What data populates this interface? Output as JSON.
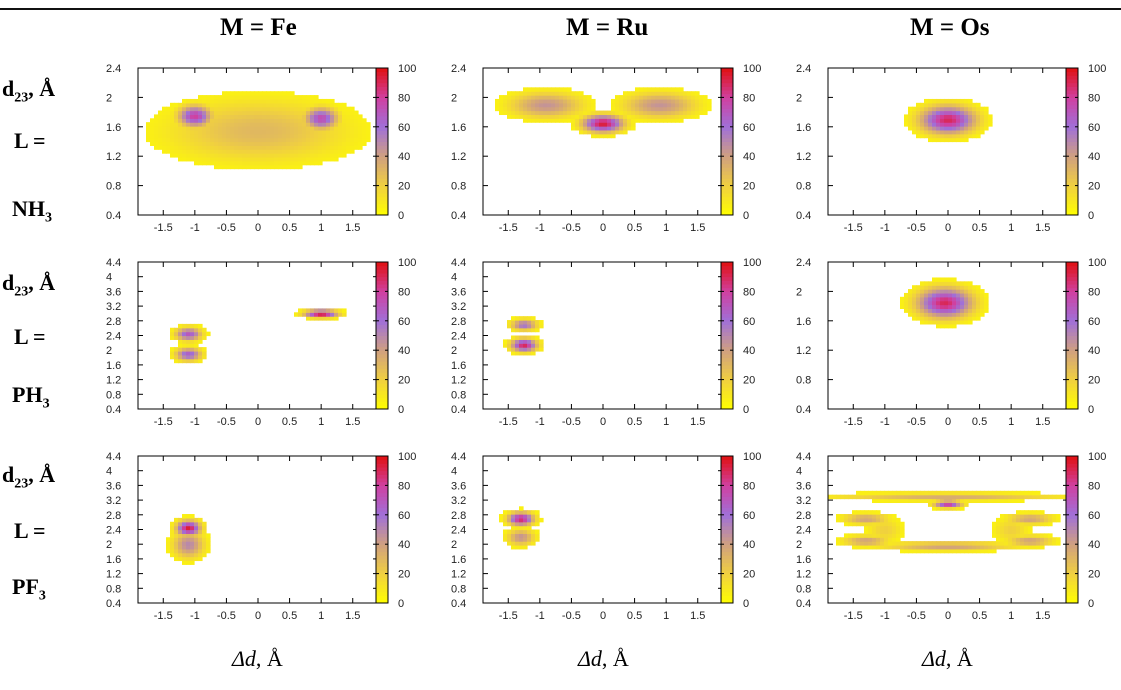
{
  "column_titles": [
    "M = Fe",
    "M = Ru",
    "M = Os"
  ],
  "row_labels": [
    {
      "axis": "d",
      "axis_sub": "23",
      "unit": ", Å",
      "ligand_prefix": "L =",
      "ligand": "NH",
      "ligand_sub": "3"
    },
    {
      "axis": "d",
      "axis_sub": "23",
      "unit": ", Å",
      "ligand_prefix": "L =",
      "ligand": "PH",
      "ligand_sub": "3"
    },
    {
      "axis": "d",
      "axis_sub": "23",
      "unit": ", Å",
      "ligand_prefix": "L =",
      "ligand": "PF",
      "ligand_sub": "3"
    }
  ],
  "xlabel": {
    "symbol": "Δd",
    "unit": ", Å"
  },
  "colorscale": {
    "ticks": [
      "0",
      "20",
      "40",
      "60",
      "80",
      "100"
    ],
    "colors": [
      "#ffff00",
      "#f0d040",
      "#d0a080",
      "#a070d8",
      "#d040a0",
      "#e01010"
    ]
  },
  "chart_data": [
    {
      "type": "heatmap",
      "panel": "Fe-NH3",
      "xlim": [
        -1.9,
        1.9
      ],
      "ylim": [
        0.4,
        2.4
      ],
      "xticks": [
        "-1.5",
        "-1",
        "-0.5",
        "0",
        "0.5",
        "1",
        "1.5"
      ],
      "yticks": [
        "0.4",
        "0.8",
        "1.2",
        "1.6",
        "2",
        "2.4"
      ],
      "blobs": [
        {
          "x": -1.0,
          "y": 1.75,
          "sx": 0.18,
          "sy": 0.1,
          "peak": 80
        },
        {
          "x": 1.0,
          "y": 1.72,
          "sx": 0.18,
          "sy": 0.1,
          "peak": 75
        },
        {
          "x": 0.0,
          "y": 1.55,
          "sx": 1.0,
          "sy": 0.3,
          "peak": 30
        }
      ]
    },
    {
      "type": "heatmap",
      "panel": "Ru-NH3",
      "xlim": [
        -1.9,
        1.9
      ],
      "ylim": [
        0.4,
        2.4
      ],
      "xticks": [
        "-1.5",
        "-1",
        "-0.5",
        "0",
        "0.5",
        "1",
        "1.5"
      ],
      "yticks": [
        "0.4",
        "0.8",
        "1.2",
        "1.6",
        "2",
        "2.4"
      ],
      "blobs": [
        {
          "x": 0.0,
          "y": 1.65,
          "sx": 0.22,
          "sy": 0.08,
          "peak": 95
        },
        {
          "x": -0.9,
          "y": 1.9,
          "sx": 0.4,
          "sy": 0.12,
          "peak": 45
        },
        {
          "x": 0.9,
          "y": 1.9,
          "sx": 0.4,
          "sy": 0.12,
          "peak": 45
        }
      ]
    },
    {
      "type": "heatmap",
      "panel": "Os-NH3",
      "xlim": [
        -1.9,
        1.9
      ],
      "ylim": [
        0.4,
        2.4
      ],
      "xticks": [
        "-1.5",
        "-1",
        "-0.5",
        "0",
        "0.5",
        "1",
        "1.5"
      ],
      "yticks": [
        "0.4",
        "0.8",
        "1.2",
        "1.6",
        "2",
        "2.4"
      ],
      "blobs": [
        {
          "x": 0.0,
          "y": 1.7,
          "sx": 0.3,
          "sy": 0.13,
          "peak": 90
        }
      ]
    },
    {
      "type": "heatmap",
      "panel": "Fe-PH3",
      "xlim": [
        -1.9,
        1.9
      ],
      "ylim": [
        0.4,
        4.4
      ],
      "xticks": [
        "-1.5",
        "-1",
        "-0.5",
        "0",
        "0.5",
        "1",
        "1.5"
      ],
      "yticks": [
        "0.4",
        "0.8",
        "1.2",
        "1.6",
        "2",
        "2.4",
        "2.8",
        "3.2",
        "3.6",
        "4",
        "4.4"
      ],
      "blobs": [
        {
          "x": -1.1,
          "y": 2.45,
          "sx": 0.14,
          "sy": 0.12,
          "peak": 70
        },
        {
          "x": -1.1,
          "y": 1.9,
          "sx": 0.14,
          "sy": 0.12,
          "peak": 68
        },
        {
          "x": 1.0,
          "y": 3.0,
          "sx": 0.18,
          "sy": 0.07,
          "peak": 95
        }
      ]
    },
    {
      "type": "heatmap",
      "panel": "Ru-PH3",
      "xlim": [
        -1.9,
        1.9
      ],
      "ylim": [
        0.4,
        4.4
      ],
      "xticks": [
        "-1.5",
        "-1",
        "-0.5",
        "0",
        "0.5",
        "1",
        "1.5"
      ],
      "yticks": [
        "0.4",
        "0.8",
        "1.2",
        "1.6",
        "2",
        "2.4",
        "2.8",
        "3.2",
        "3.6",
        "4",
        "4.4"
      ],
      "blobs": [
        {
          "x": -1.25,
          "y": 2.7,
          "sx": 0.14,
          "sy": 0.1,
          "peak": 60
        },
        {
          "x": -1.25,
          "y": 2.15,
          "sx": 0.14,
          "sy": 0.12,
          "peak": 90
        }
      ]
    },
    {
      "type": "heatmap",
      "panel": "Os-PH3",
      "xlim": [
        -1.9,
        1.9
      ],
      "ylim": [
        0.4,
        2.4
      ],
      "xticks": [
        "-1.5",
        "-1",
        "-0.5",
        "0",
        "0.5",
        "1",
        "1.5"
      ],
      "yticks": [
        "0.4",
        "0.8",
        "1.2",
        "1.6",
        "2",
        "2.4"
      ],
      "blobs": [
        {
          "x": -0.05,
          "y": 1.85,
          "sx": 0.3,
          "sy": 0.14,
          "peak": 90
        }
      ]
    },
    {
      "type": "heatmap",
      "panel": "Fe-PF3",
      "xlim": [
        -1.9,
        1.9
      ],
      "ylim": [
        0.4,
        4.4
      ],
      "xticks": [
        "-1.5",
        "-1",
        "-0.5",
        "0",
        "0.5",
        "1",
        "1.5"
      ],
      "yticks": [
        "0.4",
        "0.8",
        "1.2",
        "1.6",
        "2",
        "2.4",
        "2.8",
        "3.2",
        "3.6",
        "4",
        "4.4"
      ],
      "blobs": [
        {
          "x": -1.1,
          "y": 2.45,
          "sx": 0.13,
          "sy": 0.14,
          "peak": 95
        },
        {
          "x": -1.1,
          "y": 2.0,
          "sx": 0.17,
          "sy": 0.25,
          "peak": 50
        }
      ]
    },
    {
      "type": "heatmap",
      "panel": "Ru-PF3",
      "xlim": [
        -1.9,
        1.9
      ],
      "ylim": [
        0.4,
        4.4
      ],
      "xticks": [
        "-1.5",
        "-1",
        "-0.5",
        "0",
        "0.5",
        "1",
        "1.5"
      ],
      "yticks": [
        "0.4",
        "0.8",
        "1.2",
        "1.6",
        "2",
        "2.4",
        "2.8",
        "3.2",
        "3.6",
        "4",
        "4.4"
      ],
      "blobs": [
        {
          "x": -1.3,
          "y": 2.7,
          "sx": 0.14,
          "sy": 0.12,
          "peak": 90
        },
        {
          "x": -1.3,
          "y": 2.2,
          "sx": 0.15,
          "sy": 0.15,
          "peak": 45
        }
      ]
    },
    {
      "type": "heatmap",
      "panel": "Os-PF3",
      "xlim": [
        -1.9,
        1.9
      ],
      "ylim": [
        0.4,
        4.4
      ],
      "xticks": [
        "-1.5",
        "-1",
        "-0.5",
        "0",
        "0.5",
        "1",
        "1.5"
      ],
      "yticks": [
        "0.4",
        "0.8",
        "1.2",
        "1.6",
        "2",
        "2.4",
        "2.8",
        "3.2",
        "3.6",
        "4",
        "4.4"
      ],
      "blobs": [
        {
          "x": 0.0,
          "y": 3.1,
          "sx": 0.15,
          "sy": 0.07,
          "peak": 80
        },
        {
          "x": 0.0,
          "y": 3.3,
          "sx": 1.2,
          "sy": 0.07,
          "peak": 35
        },
        {
          "x": -1.3,
          "y": 2.7,
          "sx": 0.25,
          "sy": 0.1,
          "peak": 40
        },
        {
          "x": 1.3,
          "y": 2.7,
          "sx": 0.25,
          "sy": 0.1,
          "peak": 40
        },
        {
          "x": -1.3,
          "y": 2.1,
          "sx": 0.25,
          "sy": 0.1,
          "peak": 40
        },
        {
          "x": 1.3,
          "y": 2.1,
          "sx": 0.25,
          "sy": 0.1,
          "peak": 40
        },
        {
          "x": 0.0,
          "y": 1.95,
          "sx": 0.7,
          "sy": 0.08,
          "peak": 40
        },
        {
          "x": -1.0,
          "y": 2.4,
          "sx": 0.2,
          "sy": 0.25,
          "peak": 20
        },
        {
          "x": 1.0,
          "y": 2.4,
          "sx": 0.2,
          "sy": 0.25,
          "peak": 20
        }
      ]
    }
  ]
}
